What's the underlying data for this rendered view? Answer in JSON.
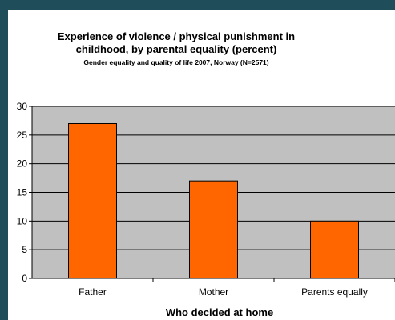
{
  "chart_data": {
    "type": "bar",
    "title_line1": "Experience of violence / physical punishment in",
    "title_line2": "childhood, by parental equality (percent)",
    "subtitle": "Gender equality and quality of life 2007, Norway (N=2571)",
    "categories": [
      "Father",
      "Mother",
      "Parents equally"
    ],
    "values": [
      27,
      17,
      10
    ],
    "xlabel": "Who decided at home",
    "ylabel": "",
    "ylim": [
      0,
      30
    ],
    "yticks": [
      "0",
      "5",
      "10",
      "15",
      "20",
      "25",
      "30"
    ],
    "grid": true,
    "legend": "none"
  },
  "colors": {
    "frame": "#1f4e5a",
    "plot_background": "#c0c0c0",
    "bar_fill": "#ff6600",
    "bar_stroke": "#000000"
  }
}
